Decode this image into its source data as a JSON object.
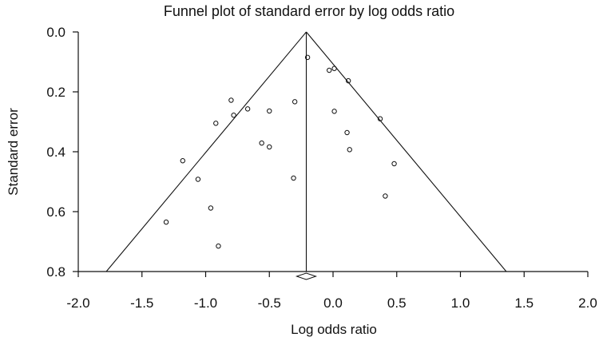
{
  "chart_data": {
    "type": "scatter",
    "title": "Funnel plot of standard error by log odds ratio",
    "xlabel": "Log odds ratio",
    "ylabel": "Standard error",
    "xlim": [
      -2.0,
      2.0
    ],
    "ylim": [
      0.0,
      0.8
    ],
    "y_inverted": true,
    "x_ticks": [
      "-2.0",
      "-1.5",
      "-1.0",
      "-0.5",
      "0.0",
      "0.5",
      "1.0",
      "1.5",
      "2.0"
    ],
    "y_ticks": [
      "0.0",
      "0.2",
      "0.4",
      "0.6",
      "0.8"
    ],
    "grid": false,
    "legend": "none",
    "summary_effect": -0.21,
    "funnel": {
      "apex": [
        -0.21,
        0.0
      ],
      "bottom_left": [
        -1.78,
        0.8
      ],
      "bottom_right": [
        1.36,
        0.8
      ]
    },
    "points": [
      {
        "x": -0.2,
        "y": 0.085
      },
      {
        "x": -0.03,
        "y": 0.128
      },
      {
        "x": 0.01,
        "y": 0.122
      },
      {
        "x": 0.12,
        "y": 0.163
      },
      {
        "x": -0.8,
        "y": 0.228
      },
      {
        "x": -0.3,
        "y": 0.233
      },
      {
        "x": -0.67,
        "y": 0.257
      },
      {
        "x": -0.5,
        "y": 0.264
      },
      {
        "x": 0.01,
        "y": 0.265
      },
      {
        "x": -0.78,
        "y": 0.278
      },
      {
        "x": 0.37,
        "y": 0.29
      },
      {
        "x": -0.92,
        "y": 0.305
      },
      {
        "x": 0.11,
        "y": 0.336
      },
      {
        "x": -0.56,
        "y": 0.371
      },
      {
        "x": -0.5,
        "y": 0.384
      },
      {
        "x": 0.13,
        "y": 0.393
      },
      {
        "x": -1.18,
        "y": 0.43
      },
      {
        "x": 0.48,
        "y": 0.44
      },
      {
        "x": -1.06,
        "y": 0.492
      },
      {
        "x": -0.31,
        "y": 0.488
      },
      {
        "x": 0.41,
        "y": 0.548
      },
      {
        "x": -0.96,
        "y": 0.588
      },
      {
        "x": -1.31,
        "y": 0.635
      },
      {
        "x": -0.9,
        "y": 0.715
      }
    ],
    "colors": {
      "lines": "#111111",
      "points": "#111111",
      "background": "#ffffff"
    }
  }
}
